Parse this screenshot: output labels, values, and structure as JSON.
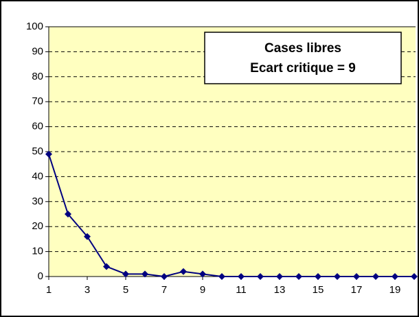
{
  "chart_data": {
    "type": "line",
    "title": "Cases libres",
    "subtitle": "Ecart critique = 9",
    "x": [
      1,
      2,
      3,
      4,
      5,
      6,
      7,
      8,
      9,
      10,
      11,
      12,
      13,
      14,
      15,
      16,
      17,
      18,
      19,
      20
    ],
    "series": [
      {
        "name": null,
        "color": "#000080",
        "values": [
          49,
          25,
          16,
          4,
          1,
          1,
          0,
          2,
          1,
          0,
          0,
          0,
          0,
          0,
          0,
          0,
          0,
          0,
          0,
          0
        ]
      }
    ],
    "xlim": [
      1,
      20
    ],
    "xticks": [
      1,
      3,
      5,
      7,
      9,
      11,
      13,
      15,
      17,
      19
    ],
    "ylim": [
      0,
      100
    ],
    "yticks": [
      0,
      10,
      20,
      30,
      40,
      50,
      60,
      70,
      80,
      90,
      100
    ],
    "grid": true,
    "plot_background": "#ffffc0"
  }
}
